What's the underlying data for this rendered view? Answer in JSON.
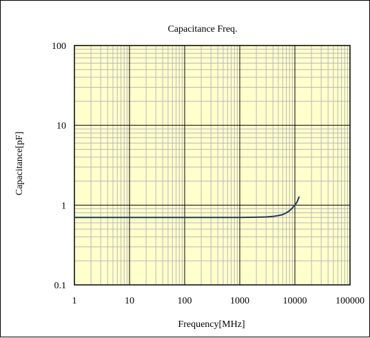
{
  "chart_data": {
    "type": "line",
    "title": "Capacitance Freq.",
    "xlabel": "Frequency[MHz]",
    "ylabel": "Capacitance[pF]",
    "x_scale": "log",
    "y_scale": "log",
    "xlim": [
      1,
      100000
    ],
    "ylim": [
      0.1,
      100
    ],
    "x_ticks": [
      1,
      10,
      100,
      1000,
      10000,
      100000
    ],
    "x_tick_labels": [
      "1",
      "10",
      "100",
      "1000",
      "10000",
      "100000"
    ],
    "y_ticks": [
      0.1,
      1,
      10,
      100
    ],
    "y_tick_labels": [
      "0.1",
      "1",
      "10",
      "100"
    ],
    "grid": true,
    "legend": "none",
    "colors": {
      "plot_background": "#ffffcc",
      "major_grid": "#000000",
      "minor_grid": "#b8b8b8",
      "series_line": "#1f3a5f"
    },
    "series": [
      {
        "x": [
          1,
          10,
          100,
          1000,
          2000,
          3000,
          4000,
          5000,
          6000,
          7000,
          8000,
          9000,
          10000,
          11000,
          12000
        ],
        "values": [
          0.7,
          0.7,
          0.7,
          0.7,
          0.705,
          0.71,
          0.72,
          0.74,
          0.76,
          0.8,
          0.85,
          0.92,
          1.0,
          1.1,
          1.28
        ]
      }
    ]
  }
}
